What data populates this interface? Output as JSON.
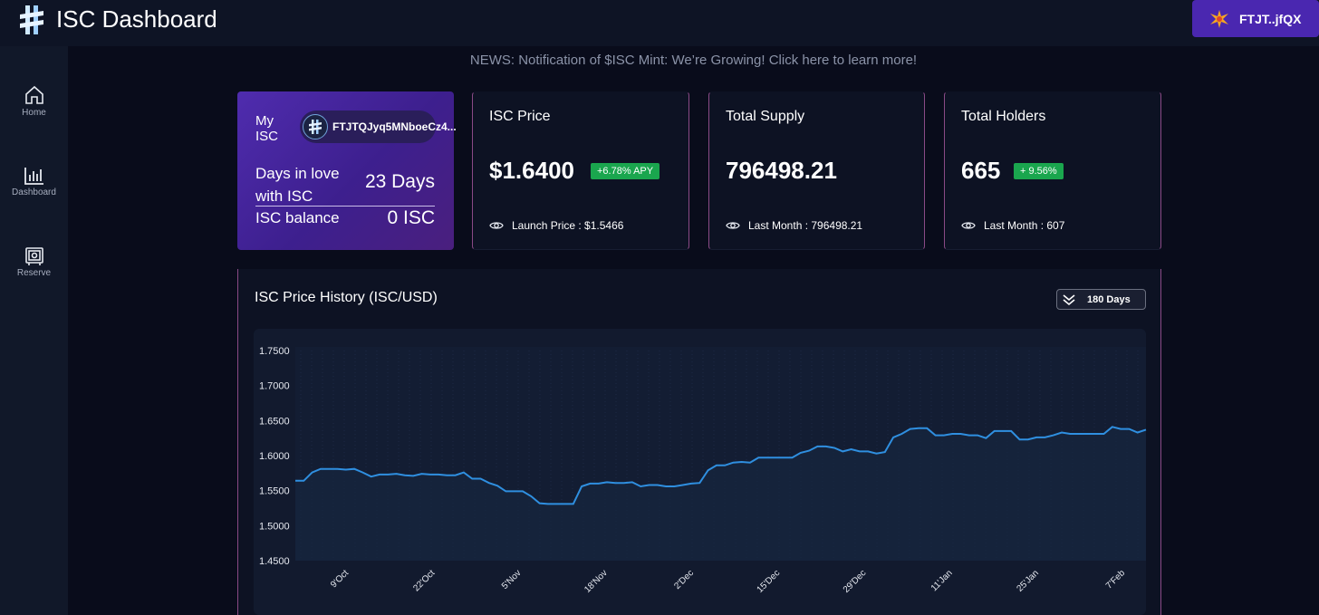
{
  "header": {
    "app_title": "ISC Dashboard",
    "logo_icon": "isc-logo-icon",
    "wallet_button": {
      "label": "FTJT..jfQX",
      "icon": "starburst-icon"
    }
  },
  "sidebar": {
    "items": [
      {
        "label": "Home",
        "icon": "home-icon"
      },
      {
        "label": "Dashboard",
        "icon": "bar-chart-icon"
      },
      {
        "label": "Reserve",
        "icon": "safe-icon"
      }
    ]
  },
  "news": {
    "text": "NEWS: Notification of $ISC Mint: We’re Growing! Click here to learn more!"
  },
  "my_isc": {
    "label": "My ISC",
    "address": "FTJTQJyq5MNboeCz4...",
    "days_label": "Days in love with ISC",
    "days_value": "23 Days",
    "balance_label": "ISC balance",
    "balance_value": "0 ISC"
  },
  "stats": [
    {
      "title": "ISC Price",
      "value": "$1.6400",
      "badge": "+6.78% APY",
      "footer": "Launch Price : $1.5466"
    },
    {
      "title": "Total Supply",
      "value": "796498.21",
      "badge": "",
      "footer": "Last Month : 796498.21"
    },
    {
      "title": "Total Holders",
      "value": "665",
      "badge": "+ 9.56%",
      "footer": "Last Month : 607"
    }
  ],
  "colors": {
    "accent": "#4a27b0",
    "badge_green": "#1aa64e",
    "line": "#2f8fe0",
    "panel_edge": "#8a4a86"
  },
  "price_chart": {
    "title": "ISC Price History (ISC/USD)",
    "range_label": "180 Days"
  },
  "chart_data": {
    "type": "line",
    "title": "ISC Price History (ISC/USD)",
    "xlabel": "",
    "ylabel": "",
    "ylim": [
      1.45,
      1.75
    ],
    "yticks": [
      "1.7500",
      "1.7000",
      "1.6500",
      "1.6000",
      "1.5500",
      "1.5000",
      "1.4500"
    ],
    "xticks": [
      "9'Oct",
      "22'Oct",
      "5'Nov",
      "18'Nov",
      "2'Dec",
      "15'Dec",
      "29'Dec",
      "11'Jan",
      "25'Jan",
      "7'Feb"
    ],
    "grid": false,
    "series": [
      {
        "values": [
          1.564,
          1.564,
          1.576,
          1.581,
          1.581,
          1.581,
          1.58,
          1.581,
          1.576,
          1.57,
          1.573,
          1.573,
          1.574,
          1.572,
          1.571,
          1.574,
          1.573,
          1.573,
          1.572,
          1.572,
          1.576,
          1.567,
          1.567,
          1.561,
          1.557,
          1.549,
          1.549,
          1.549,
          1.542,
          1.532,
          1.531,
          1.531,
          1.531,
          1.531,
          1.556,
          1.56,
          1.56,
          1.562,
          1.561,
          1.561,
          1.562,
          1.556,
          1.558,
          1.558,
          1.556,
          1.556,
          1.558,
          1.56,
          1.561,
          1.579,
          1.586,
          1.586,
          1.59,
          1.591,
          1.59,
          1.597,
          1.597,
          1.597,
          1.597,
          1.597,
          1.604,
          1.607,
          1.613,
          1.613,
          1.611,
          1.606,
          1.609,
          1.606,
          1.606,
          1.603,
          1.605,
          1.626,
          1.631,
          1.638,
          1.639,
          1.639,
          1.629,
          1.629,
          1.631,
          1.631,
          1.629,
          1.629,
          1.625,
          1.635,
          1.635,
          1.635,
          1.623,
          1.623,
          1.626,
          1.626,
          1.629,
          1.633,
          1.631,
          1.631,
          1.631,
          1.631,
          1.631,
          1.641,
          1.638,
          1.638,
          1.633,
          1.637
        ]
      }
    ]
  }
}
